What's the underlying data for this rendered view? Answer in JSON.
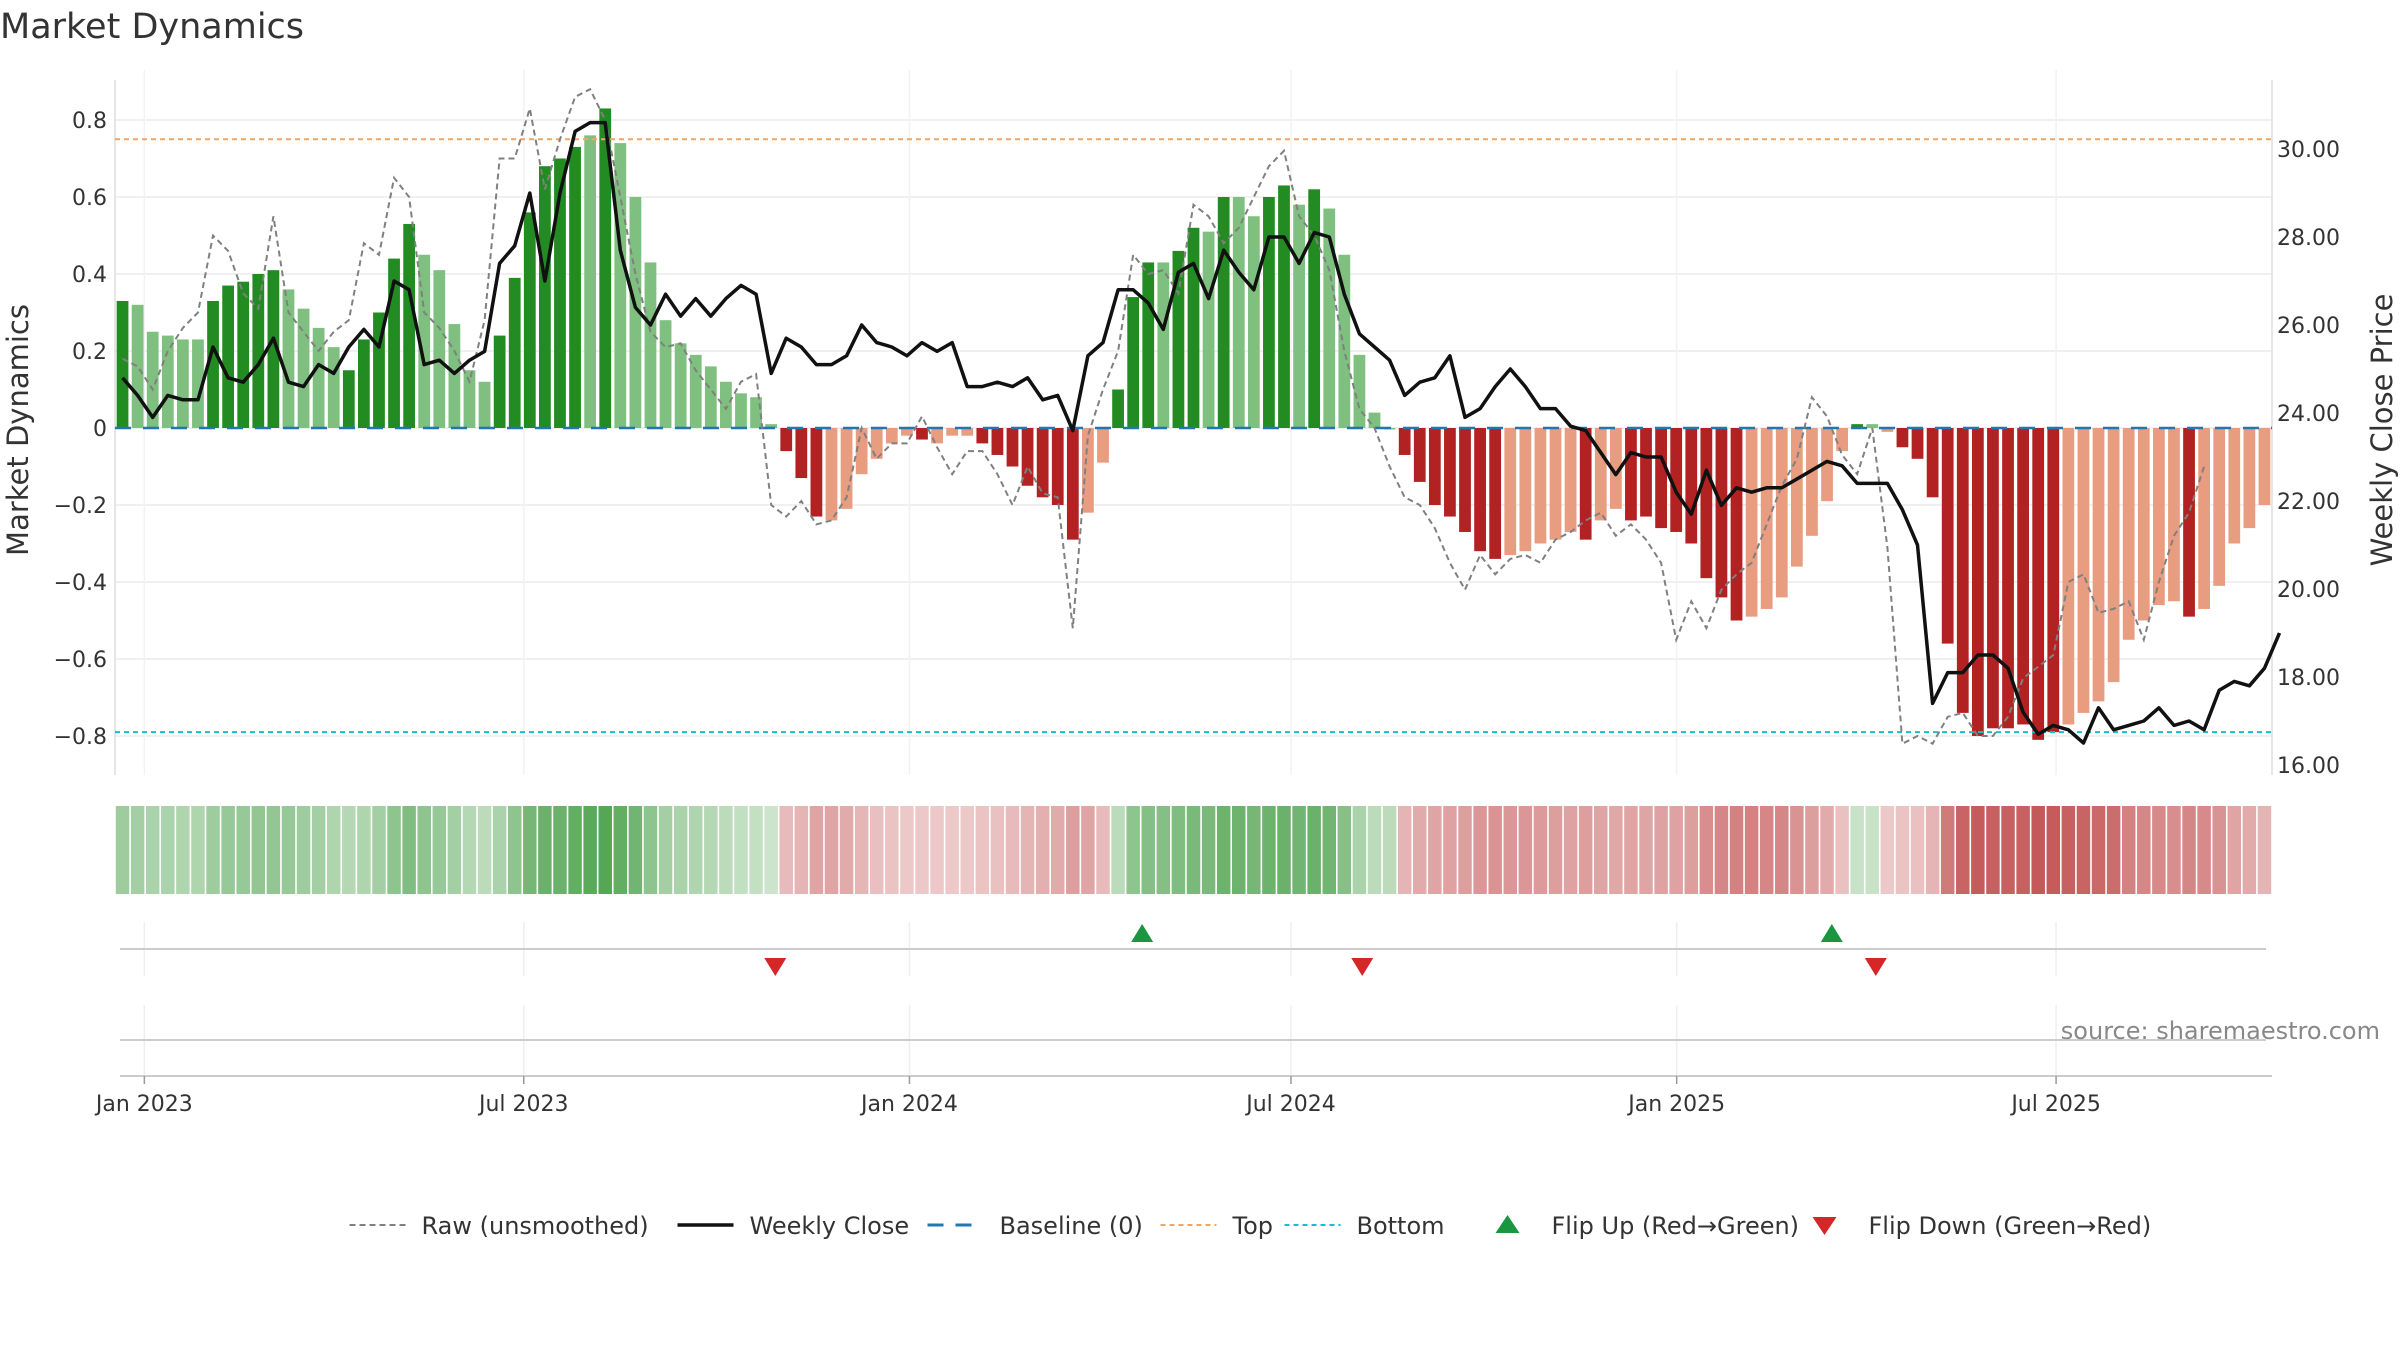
{
  "chart_data": {
    "type": "bar",
    "title": "Market Dynamics",
    "ylabel_left": "Market Dynamics",
    "ylabel_right": "Weekly Close Price",
    "ylim_left": [
      -0.9,
      0.9
    ],
    "ylim_right": [
      15.7,
      31.5
    ],
    "left_ticks": [
      "0.8",
      "0.6",
      "0.4",
      "0.2",
      "0",
      "−0.2",
      "−0.4",
      "−0.6",
      "−0.8"
    ],
    "left_tick_values": [
      0.8,
      0.6,
      0.4,
      0.2,
      0,
      -0.2,
      -0.4,
      -0.6,
      -0.8
    ],
    "right_ticks": [
      "30.00",
      "28.00",
      "26.00",
      "24.00",
      "22.00",
      "20.00",
      "18.00",
      "16.00"
    ],
    "right_tick_values": [
      30,
      28,
      26,
      24,
      22,
      20,
      18,
      16
    ],
    "x_ticks": [
      "Jan 2023",
      "Jul 2023",
      "Jan 2024",
      "Jul 2024",
      "Jan 2025",
      "Jul 2025"
    ],
    "x_tick_dates": [
      "2023-01-01",
      "2023-07-01",
      "2024-01-01",
      "2024-07-01",
      "2025-01-01",
      "2025-07-01"
    ],
    "start_date": "2022-12-18",
    "end_date": "2025-10-12",
    "grid": true,
    "top_level": 0.75,
    "bottom_level": -0.79,
    "baseline": 0,
    "colors": {
      "strong_up": "#228b22",
      "weak_up": "#7fbf7f",
      "strong_down": "#b22222",
      "weak_down": "#e89c80",
      "close": "#111111",
      "raw": "#808080",
      "baseline": "#1f77b4",
      "top": "#f4a460",
      "bottom": "#17becf",
      "flip_up": "#1a9641",
      "flip_down": "#d62728"
    },
    "series": [
      {
        "name": "Market Dynamics",
        "values": [
          0.33,
          0.32,
          0.25,
          0.24,
          0.23,
          0.23,
          0.33,
          0.37,
          0.38,
          0.4,
          0.41,
          0.36,
          0.31,
          0.26,
          0.21,
          0.15,
          0.23,
          0.3,
          0.44,
          0.53,
          0.45,
          0.41,
          0.27,
          0.15,
          0.12,
          0.24,
          0.39,
          0.56,
          0.68,
          0.7,
          0.73,
          0.76,
          0.83,
          0.74,
          0.6,
          0.43,
          0.28,
          0.22,
          0.19,
          0.16,
          0.12,
          0.09,
          0.08,
          0.01,
          -0.06,
          -0.13,
          -0.23,
          -0.24,
          -0.21,
          -0.12,
          -0.08,
          -0.04,
          -0.02,
          -0.03,
          -0.04,
          -0.02,
          -0.02,
          -0.04,
          -0.07,
          -0.1,
          -0.15,
          -0.18,
          -0.2,
          -0.29,
          -0.22,
          -0.09,
          0.1,
          0.34,
          0.43,
          0.43,
          0.46,
          0.52,
          0.51,
          0.6,
          0.6,
          0.55,
          0.6,
          0.63,
          0.58,
          0.62,
          0.57,
          0.45,
          0.19,
          0.04,
          0.0,
          -0.07,
          -0.14,
          -0.2,
          -0.23,
          -0.27,
          -0.32,
          -0.34,
          -0.33,
          -0.32,
          -0.3,
          -0.29,
          -0.27,
          -0.29,
          -0.24,
          -0.21,
          -0.24,
          -0.23,
          -0.26,
          -0.27,
          -0.3,
          -0.39,
          -0.44,
          -0.5,
          -0.49,
          -0.47,
          -0.44,
          -0.36,
          -0.28,
          -0.19,
          -0.06,
          0.01,
          0.01,
          -0.01,
          -0.05,
          -0.08,
          -0.18,
          -0.56,
          -0.74,
          -0.8,
          -0.78,
          -0.78,
          -0.77,
          -0.81,
          -0.79,
          -0.77,
          -0.74,
          -0.71,
          -0.66,
          -0.55,
          -0.5,
          -0.46,
          -0.45,
          -0.49,
          -0.47,
          -0.41,
          -0.3,
          -0.26,
          -0.2
        ],
        "strong": [
          1,
          0,
          0,
          0,
          0,
          0,
          1,
          1,
          1,
          1,
          1,
          0,
          0,
          0,
          0,
          1,
          1,
          1,
          1,
          1,
          0,
          0,
          0,
          0,
          0,
          1,
          1,
          1,
          1,
          1,
          1,
          0,
          1,
          0,
          0,
          0,
          0,
          0,
          0,
          0,
          0,
          0,
          0,
          0,
          1,
          1,
          1,
          0,
          0,
          0,
          0,
          0,
          0,
          1,
          0,
          0,
          0,
          1,
          1,
          1,
          1,
          1,
          1,
          1,
          0,
          0,
          1,
          1,
          1,
          0,
          1,
          1,
          0,
          1,
          0,
          0,
          1,
          1,
          0,
          1,
          0,
          0,
          0,
          0,
          0,
          1,
          1,
          1,
          1,
          1,
          1,
          1,
          0,
          0,
          0,
          0,
          0,
          1,
          0,
          0,
          1,
          1,
          1,
          1,
          1,
          1,
          1,
          1,
          0,
          0,
          0,
          0,
          0,
          0,
          0,
          1,
          0,
          0,
          1,
          1,
          1,
          1,
          1,
          1,
          1,
          1,
          1,
          1,
          1,
          0,
          0,
          0,
          0,
          0,
          0,
          0,
          0,
          1,
          0,
          0,
          0,
          0,
          0
        ]
      },
      {
        "name": "Raw (unsmoothed)",
        "values": [
          0.18,
          0.16,
          0.1,
          0.2,
          0.26,
          0.3,
          0.5,
          0.46,
          0.35,
          0.31,
          0.55,
          0.3,
          0.25,
          0.2,
          0.25,
          0.28,
          0.48,
          0.45,
          0.65,
          0.6,
          0.3,
          0.26,
          0.2,
          0.12,
          0.28,
          0.7,
          0.7,
          0.83,
          0.62,
          0.75,
          0.86,
          0.88,
          0.8,
          0.6,
          0.4,
          0.25,
          0.21,
          0.22,
          0.15,
          0.1,
          0.05,
          0.12,
          0.14,
          -0.2,
          -0.23,
          -0.19,
          -0.25,
          -0.24,
          -0.18,
          0.0,
          -0.08,
          -0.04,
          -0.04,
          0.03,
          -0.05,
          -0.12,
          -0.06,
          -0.06,
          -0.12,
          -0.2,
          -0.1,
          -0.17,
          -0.18,
          -0.52,
          -0.02,
          0.1,
          0.2,
          0.45,
          0.4,
          0.41,
          0.35,
          0.58,
          0.55,
          0.48,
          0.52,
          0.6,
          0.68,
          0.72,
          0.55,
          0.5,
          0.41,
          0.2,
          0.05,
          0.0,
          -0.1,
          -0.18,
          -0.2,
          -0.26,
          -0.35,
          -0.42,
          -0.33,
          -0.38,
          -0.34,
          -0.33,
          -0.35,
          -0.29,
          -0.27,
          -0.24,
          -0.22,
          -0.28,
          -0.25,
          -0.29,
          -0.35,
          -0.55,
          -0.45,
          -0.52,
          -0.42,
          -0.38,
          -0.35,
          -0.25,
          -0.15,
          -0.08,
          0.08,
          0.03,
          -0.07,
          -0.12,
          0.0,
          -0.31,
          -0.82,
          -0.8,
          -0.82,
          -0.75,
          -0.74,
          -0.8,
          -0.8,
          -0.75,
          -0.65,
          -0.62,
          -0.59,
          -0.4,
          -0.38,
          -0.48,
          -0.47,
          -0.45,
          -0.55,
          -0.4,
          -0.28,
          -0.22,
          -0.1
        ]
      },
      {
        "name": "Weekly Close",
        "axis": "right",
        "values": [
          24.8,
          24.4,
          23.9,
          24.4,
          24.3,
          24.3,
          25.5,
          24.8,
          24.7,
          25.1,
          25.7,
          24.7,
          24.6,
          25.1,
          24.9,
          25.5,
          25.9,
          25.5,
          27.0,
          26.8,
          25.1,
          25.2,
          24.9,
          25.2,
          25.4,
          27.4,
          27.8,
          29.0,
          27.0,
          29.0,
          30.4,
          30.6,
          30.6,
          27.7,
          26.4,
          26.0,
          26.7,
          26.2,
          26.6,
          26.2,
          26.6,
          26.9,
          26.7,
          24.9,
          25.7,
          25.5,
          25.1,
          25.1,
          25.3,
          26.0,
          25.6,
          25.5,
          25.3,
          25.6,
          25.4,
          25.6,
          24.6,
          24.6,
          24.7,
          24.6,
          24.8,
          24.3,
          24.4,
          23.6,
          25.3,
          25.6,
          26.8,
          26.8,
          26.5,
          25.9,
          27.2,
          27.4,
          26.6,
          27.7,
          27.2,
          26.8,
          28.0,
          28.0,
          27.4,
          28.1,
          28.0,
          26.7,
          25.8,
          25.5,
          25.2,
          24.4,
          24.7,
          24.8,
          25.3,
          23.9,
          24.1,
          24.6,
          25.0,
          24.6,
          24.1,
          24.1,
          23.7,
          23.6,
          23.1,
          22.6,
          23.1,
          23.0,
          23.0,
          22.2,
          21.7,
          22.7,
          21.9,
          22.3,
          22.2,
          22.3,
          22.3,
          22.5,
          22.7,
          22.9,
          22.8,
          22.4,
          22.4,
          22.4,
          21.8,
          21.0,
          17.4,
          18.1,
          18.1,
          18.5,
          18.5,
          18.2,
          17.2,
          16.7,
          16.9,
          16.8,
          16.5,
          17.3,
          16.8,
          16.9,
          17.0,
          17.3,
          16.9,
          17.0,
          16.8,
          17.7,
          17.9,
          17.8,
          18.2,
          19.0
        ]
      }
    ],
    "band_intensity": [
      0.45,
      0.4,
      0.35,
      0.35,
      0.33,
      0.33,
      0.45,
      0.5,
      0.5,
      0.52,
      0.52,
      0.5,
      0.45,
      0.4,
      0.33,
      0.3,
      0.33,
      0.4,
      0.55,
      0.65,
      0.55,
      0.5,
      0.4,
      0.3,
      0.25,
      0.35,
      0.55,
      0.72,
      0.8,
      0.8,
      0.85,
      0.9,
      0.95,
      0.85,
      0.75,
      0.55,
      0.4,
      0.35,
      0.32,
      0.3,
      0.25,
      0.2,
      0.18,
      0.12,
      0.25,
      0.3,
      0.4,
      0.4,
      0.35,
      0.28,
      0.22,
      0.18,
      0.15,
      0.15,
      0.15,
      0.15,
      0.15,
      0.18,
      0.2,
      0.25,
      0.3,
      0.32,
      0.35,
      0.45,
      0.4,
      0.25,
      0.25,
      0.55,
      0.62,
      0.62,
      0.65,
      0.7,
      0.7,
      0.78,
      0.78,
      0.72,
      0.78,
      0.8,
      0.75,
      0.8,
      0.75,
      0.6,
      0.35,
      0.25,
      0.25,
      0.3,
      0.35,
      0.4,
      0.42,
      0.45,
      0.5,
      0.52,
      0.5,
      0.5,
      0.48,
      0.45,
      0.42,
      0.45,
      0.4,
      0.38,
      0.4,
      0.4,
      0.42,
      0.42,
      0.45,
      0.55,
      0.6,
      0.65,
      0.65,
      0.62,
      0.6,
      0.52,
      0.45,
      0.35,
      0.2,
      0.15,
      0.15,
      0.15,
      0.18,
      0.2,
      0.3,
      0.7,
      0.85,
      0.9,
      0.88,
      0.88,
      0.88,
      0.92,
      0.9,
      0.88,
      0.85,
      0.82,
      0.78,
      0.65,
      0.62,
      0.58,
      0.55,
      0.6,
      0.58,
      0.52,
      0.4,
      0.35,
      0.3
    ],
    "flips_up": [
      "2024-04-21",
      "2025-03-16"
    ],
    "flips_down": [
      "2023-10-29",
      "2024-08-04",
      "2025-04-06"
    ],
    "annotations": [],
    "legend": {
      "placement": "bottom-center",
      "entries": [
        {
          "label": "Raw (unsmoothed)",
          "style": "raw"
        },
        {
          "label": "Weekly Close",
          "style": "close"
        },
        {
          "label": "Baseline (0)",
          "style": "baseline"
        },
        {
          "label": "Top",
          "style": "top"
        },
        {
          "label": "Bottom",
          "style": "bottom"
        },
        {
          "label": "Flip Up (Red→Green)",
          "style": "flip_up"
        },
        {
          "label": "Flip Down (Green→Red)",
          "style": "flip_down"
        }
      ]
    },
    "source": "source: sharemaestro.com"
  }
}
